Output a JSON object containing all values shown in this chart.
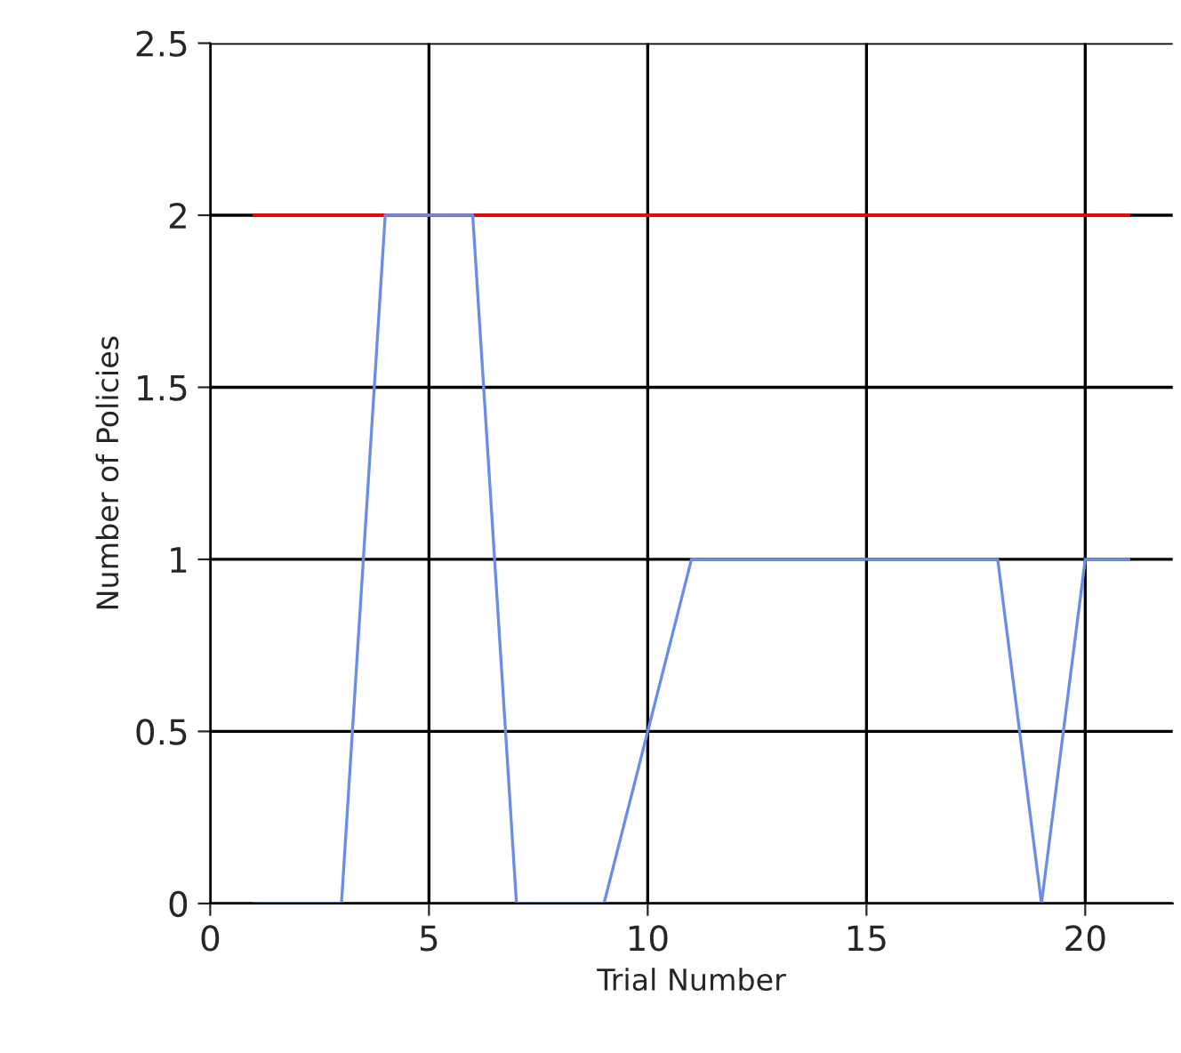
{
  "chart_data": {
    "type": "line",
    "xlabel": "Trial Number",
    "ylabel": "Number of Policies",
    "xlim": [
      0,
      22
    ],
    "xticks": [
      0,
      5,
      10,
      15,
      20
    ],
    "ylim": [
      0,
      2.5
    ],
    "yticks": [
      0,
      0.5,
      1,
      1.5,
      2,
      2.5
    ],
    "grid": true,
    "marker": "none",
    "line_style": "solid",
    "series": [
      {
        "color": "#ff0000",
        "x": [
          1,
          21
        ],
        "values": [
          2,
          2
        ]
      },
      {
        "color": "#6a8ee8",
        "x": [
          1,
          2,
          3,
          4,
          5,
          6,
          7,
          8,
          9,
          10,
          11,
          12,
          13,
          14,
          15,
          16,
          17,
          18,
          19,
          20,
          21
        ],
        "values": [
          0,
          0,
          0,
          2,
          2,
          2,
          0,
          0,
          0,
          0.5,
          1,
          1,
          1,
          1,
          1,
          1,
          1,
          1,
          0,
          1,
          1
        ]
      }
    ]
  }
}
